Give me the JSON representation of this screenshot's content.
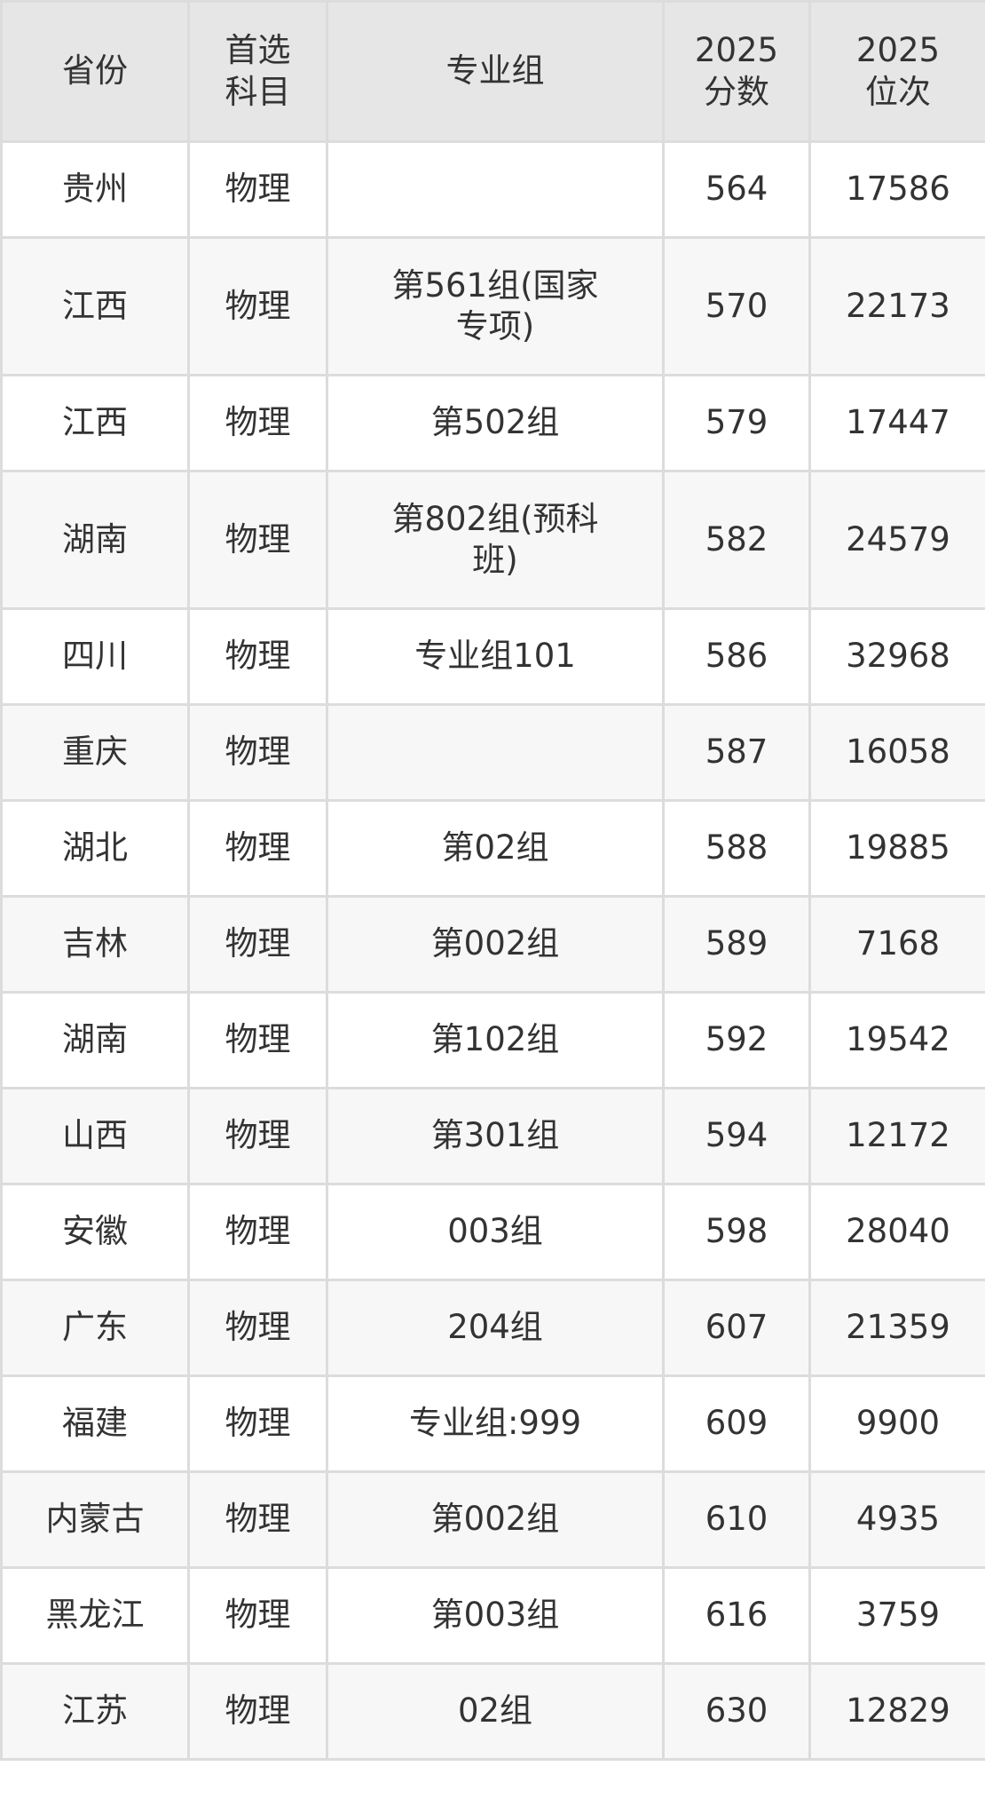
{
  "headers": [
    "省份",
    "首选科目",
    "专业组",
    "2025分数",
    "2025位次"
  ],
  "rows": [
    [
      "贵州",
      "物理",
      "",
      "564",
      "17586"
    ],
    [
      "江西",
      "物理",
      "第561组(国家专项)",
      "570",
      "22173"
    ],
    [
      "江西",
      "物理",
      "第502组",
      "579",
      "17447"
    ],
    [
      "湖南",
      "物理",
      "第802组(预科班)",
      "582",
      "24579"
    ],
    [
      "四川",
      "物理",
      "专业组101",
      "586",
      "32968"
    ],
    [
      "重庆",
      "物理",
      "",
      "587",
      "16058"
    ],
    [
      "湖北",
      "物理",
      "第02组",
      "588",
      "19885"
    ],
    [
      "吉林",
      "物理",
      "第002组",
      "589",
      "7168"
    ],
    [
      "湖南",
      "物理",
      "第102组",
      "592",
      "19542"
    ],
    [
      "山西",
      "物理",
      "第301组",
      "594",
      "12172"
    ],
    [
      "安徽",
      "物理",
      "003组",
      "598",
      "28040"
    ],
    [
      "广东",
      "物理",
      "204组",
      "607",
      "21359"
    ],
    [
      "福建",
      "物理",
      "专业组:999",
      "609",
      "9900"
    ],
    [
      "内蒙古",
      "物理",
      "第002组",
      "610",
      "4935"
    ],
    [
      "黑龙江",
      "物理",
      "第003组",
      "616",
      "3759"
    ],
    [
      "江苏",
      "物理",
      "02组",
      "630",
      "12829"
    ]
  ]
}
